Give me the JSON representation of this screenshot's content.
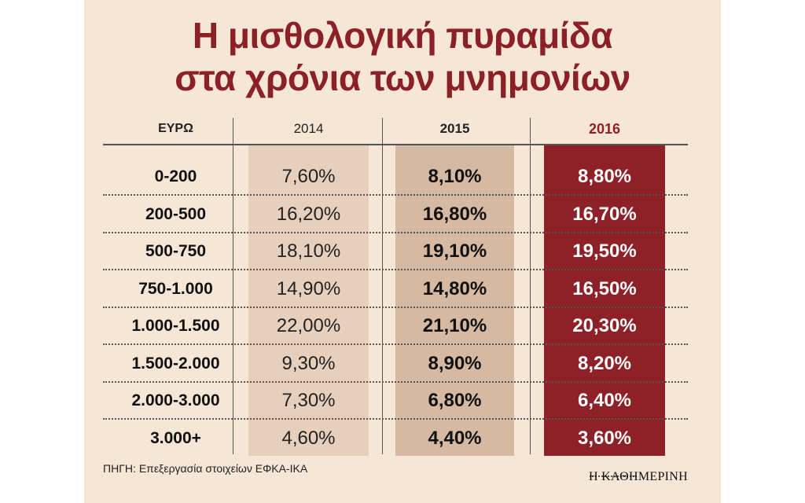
{
  "title": {
    "line1": "Η μισθολογική πυραμίδα",
    "line2": "στα χρόνια των μνημονίων"
  },
  "colors": {
    "title": "#8b2126",
    "background": "#f6e6d6",
    "col_2014": "#e8cfbb",
    "col_2015": "#d5b9a2",
    "col_2016": "#8d2127"
  },
  "chart_data": {
    "type": "table",
    "title": "Η μισθολογική πυραμίδα στα χρόνια των μνημονίων",
    "row_header": "ΕΥΡΩ",
    "columns": [
      "2014",
      "2015",
      "2016"
    ],
    "rows": [
      {
        "range": "0-200",
        "values": [
          "7,60%",
          "8,10%",
          "8,80%"
        ]
      },
      {
        "range": "200-500",
        "values": [
          "16,20%",
          "16,80%",
          "16,70%"
        ]
      },
      {
        "range": "500-750",
        "values": [
          "18,10%",
          "19,10%",
          "19,50%"
        ]
      },
      {
        "range": "750-1.000",
        "values": [
          "14,90%",
          "14,80%",
          "16,50%"
        ]
      },
      {
        "range": "1.000-1.500",
        "values": [
          "22,00%",
          "21,10%",
          "20,30%"
        ]
      },
      {
        "range": "1.500-2.000",
        "values": [
          "9,30%",
          "8,90%",
          "8,20%"
        ]
      },
      {
        "range": "2.000-3.000",
        "values": [
          "7,30%",
          "6,80%",
          "6,40%"
        ]
      },
      {
        "range": "3.000+",
        "values": [
          "4,60%",
          "4,40%",
          "3,60%"
        ]
      }
    ]
  },
  "source": "ΠΗΓΗ: Επεξεργασία στοιχείων ΕΦΚΑ-ΙΚΑ",
  "brand": "Η ΚΑΘΗΜΕΡΙΝΗ"
}
